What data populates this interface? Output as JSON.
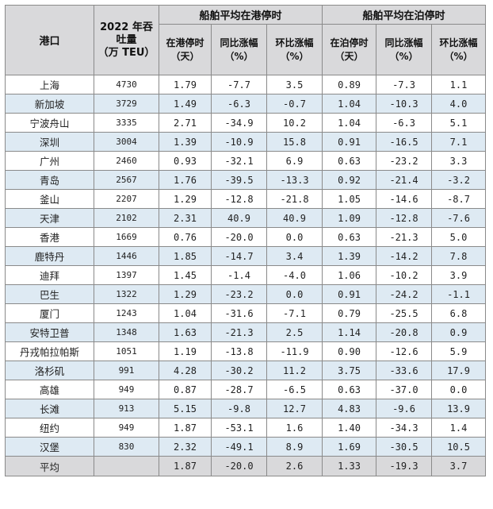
{
  "header": {
    "port": "港口",
    "volume_line1": "2022 年吞",
    "volume_line2": "吐量",
    "volume_line3": "（万 TEU）",
    "group_port": "船舶平均在港停时",
    "group_berth": "船舶平均在泊停时",
    "port_time_line1": "在港停时",
    "port_time_line2": "（天）",
    "yoy_line1": "同比涨幅",
    "yoy_line2": "（%）",
    "mom_line1": "环比涨幅",
    "mom_line2": "（%）",
    "berth_time_line1": "在泊停时",
    "berth_time_line2": "（天）",
    "berth_yoy_line1": "同比涨幅",
    "berth_yoy_line2": "（%）",
    "berth_mom_line1": "环比涨幅",
    "berth_mom_line2": "（%）"
  },
  "rows": [
    [
      "上海",
      "4730",
      "1.79",
      "-7.7",
      "3.5",
      "0.89",
      "-7.3",
      "1.1"
    ],
    [
      "新加坡",
      "3729",
      "1.49",
      "-6.3",
      "-0.7",
      "1.04",
      "-10.3",
      "4.0"
    ],
    [
      "宁波舟山",
      "3335",
      "2.71",
      "-34.9",
      "10.2",
      "1.04",
      "-6.3",
      "5.1"
    ],
    [
      "深圳",
      "3004",
      "1.39",
      "-10.9",
      "15.8",
      "0.91",
      "-16.5",
      "7.1"
    ],
    [
      "广州",
      "2460",
      "0.93",
      "-32.1",
      "6.9",
      "0.63",
      "-23.2",
      "3.3"
    ],
    [
      "青岛",
      "2567",
      "1.76",
      "-39.5",
      "-13.3",
      "0.92",
      "-21.4",
      "-3.2"
    ],
    [
      "釜山",
      "2207",
      "1.29",
      "-12.8",
      "-21.8",
      "1.05",
      "-14.6",
      "-8.7"
    ],
    [
      "天津",
      "2102",
      "2.31",
      "40.9",
      "40.9",
      "1.09",
      "-12.8",
      "-7.6"
    ],
    [
      "香港",
      "1669",
      "0.76",
      "-20.0",
      "0.0",
      "0.63",
      "-21.3",
      "5.0"
    ],
    [
      "鹿特丹",
      "1446",
      "1.85",
      "-14.7",
      "3.4",
      "1.39",
      "-14.2",
      "7.8"
    ],
    [
      "迪拜",
      "1397",
      "1.45",
      "-1.4",
      "-4.0",
      "1.06",
      "-10.2",
      "3.9"
    ],
    [
      "巴生",
      "1322",
      "1.29",
      "-23.2",
      "0.0",
      "0.91",
      "-24.2",
      "-1.1"
    ],
    [
      "厦门",
      "1243",
      "1.04",
      "-31.6",
      "-7.1",
      "0.79",
      "-25.5",
      "6.8"
    ],
    [
      "安特卫普",
      "1348",
      "1.63",
      "-21.3",
      "2.5",
      "1.14",
      "-20.8",
      "0.9"
    ],
    [
      "丹戎帕拉帕斯",
      "1051",
      "1.19",
      "-13.8",
      "-11.9",
      "0.90",
      "-12.6",
      "5.9"
    ],
    [
      "洛杉矶",
      "991",
      "4.28",
      "-30.2",
      "11.2",
      "3.75",
      "-33.6",
      "17.9"
    ],
    [
      "高雄",
      "949",
      "0.87",
      "-28.7",
      "-6.5",
      "0.63",
      "-37.0",
      "0.0"
    ],
    [
      "长滩",
      "913",
      "5.15",
      "-9.8",
      "12.7",
      "4.83",
      "-9.6",
      "13.9"
    ],
    [
      "纽约",
      "949",
      "1.87",
      "-53.1",
      "1.6",
      "1.40",
      "-34.3",
      "1.4"
    ],
    [
      "汉堡",
      "830",
      "2.32",
      "-49.1",
      "8.9",
      "1.69",
      "-30.5",
      "10.5"
    ]
  ],
  "footer": [
    "平均",
    "",
    "1.87",
    "-20.0",
    "2.6",
    "1.33",
    "-19.3",
    "3.7"
  ]
}
